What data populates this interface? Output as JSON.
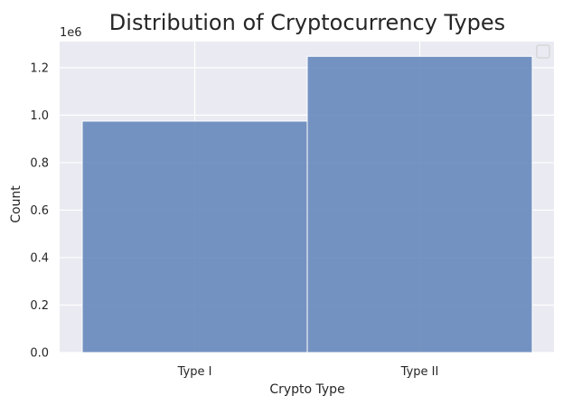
{
  "chart_data": {
    "type": "bar",
    "title": "Distribution of Cryptocurrency Types",
    "xlabel": "Crypto Type",
    "ylabel": "Count",
    "y_offset_label": "1e6",
    "categories": [
      "Type I",
      "Type II"
    ],
    "values": [
      975000,
      1248000
    ],
    "ylim": [
      0,
      1310000
    ],
    "yticks": [
      0,
      200000,
      400000,
      600000,
      800000,
      1000000,
      1200000
    ],
    "ytick_labels": [
      "0.0",
      "0.2",
      "0.4",
      "0.6",
      "0.8",
      "1.0",
      "1.2"
    ],
    "grid": true,
    "legend": "top-right",
    "colors": {
      "background": "#eaeaf2",
      "grid": "#ffffff",
      "bar": "#6788bb",
      "bar_edge": "#ffffff",
      "text": "#262626"
    }
  }
}
